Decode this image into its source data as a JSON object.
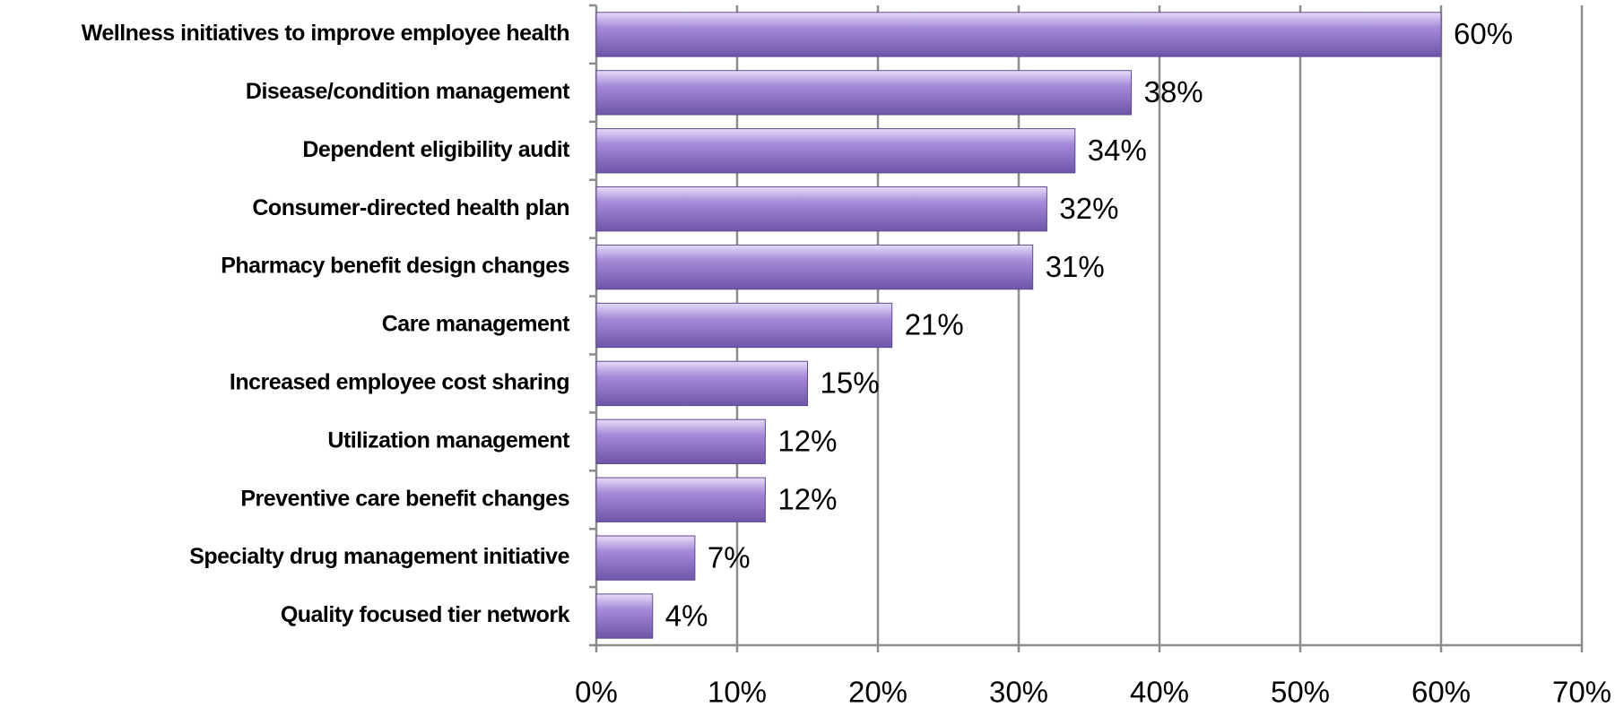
{
  "chart_data": {
    "type": "bar",
    "orientation": "horizontal",
    "categories": [
      "Wellness initiatives to improve employee health",
      "Disease/condition management",
      "Dependent eligibility audit",
      "Consumer-directed health plan",
      "Pharmacy benefit design changes",
      "Care management",
      "Increased employee cost sharing",
      "Utilization management",
      "Preventive care benefit changes",
      "Specialty drug management initiative",
      "Quality focused tier network"
    ],
    "values": [
      60,
      38,
      34,
      32,
      31,
      21,
      15,
      12,
      12,
      7,
      4
    ],
    "value_labels": [
      "60%",
      "38%",
      "34%",
      "32%",
      "31%",
      "21%",
      "15%",
      "12%",
      "12%",
      "7%",
      "4%"
    ],
    "color": "#a48ad8",
    "xlim": [
      0,
      70
    ],
    "xticks": [
      {
        "value": 0,
        "label": "0%"
      },
      {
        "value": 10,
        "label": "10%"
      },
      {
        "value": 20,
        "label": "20%"
      },
      {
        "value": 30,
        "label": "30%"
      },
      {
        "value": 40,
        "label": "40%"
      },
      {
        "value": 50,
        "label": "50%"
      },
      {
        "value": 60,
        "label": "60%"
      },
      {
        "value": 70,
        "label": "70%"
      }
    ],
    "grid": true
  }
}
